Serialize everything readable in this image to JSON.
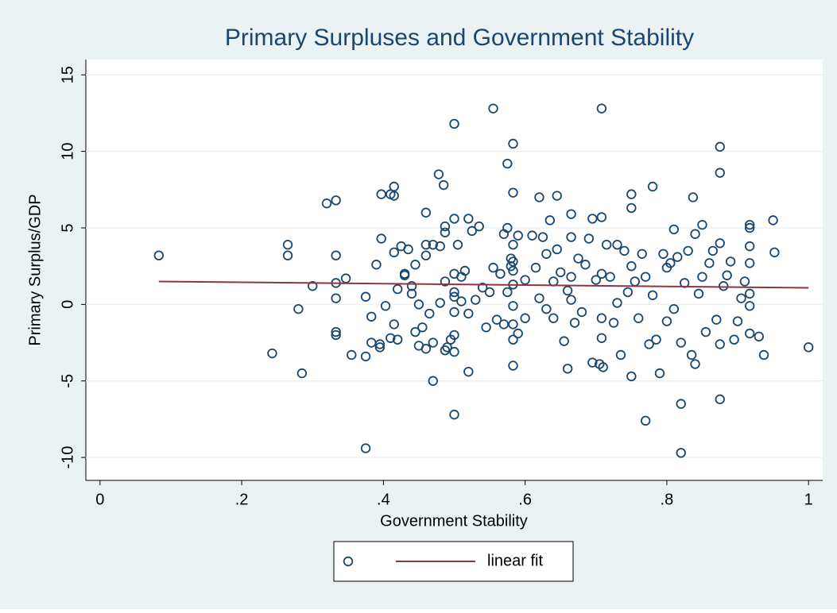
{
  "chart_data": {
    "type": "scatter",
    "title": "Primary Surpluses and Government Stability",
    "x_label": "Government Stability",
    "y_label": "Primary Surplus/GDP",
    "xlim": [
      -0.02,
      1.02
    ],
    "ylim": [
      -11.5,
      16
    ],
    "xticks": [
      0,
      {
        "value": 0.2,
        "label": ".2"
      },
      {
        "value": 0.4,
        "label": ".4"
      },
      {
        "value": 0.6,
        "label": ".6"
      },
      {
        "value": 0.8,
        "label": ".8"
      },
      1
    ],
    "yticks": [
      -10,
      -5,
      0,
      5,
      10,
      15
    ],
    "grid": true,
    "series": [
      {
        "type": "scatter",
        "color": "#1a476f",
        "x": [
          0.083,
          0.243,
          0.265,
          0.265,
          0.28,
          0.285,
          0.3,
          0.32,
          0.333,
          0.333,
          0.333,
          0.333,
          0.333,
          0.333,
          0.347,
          0.355,
          0.375,
          0.375,
          0.375,
          0.383,
          0.383,
          0.39,
          0.395,
          0.395,
          0.397,
          0.397,
          0.403,
          0.41,
          0.41,
          0.415,
          0.415,
          0.415,
          0.415,
          0.42,
          0.42,
          0.425,
          0.43,
          0.43,
          0.435,
          0.44,
          0.44,
          0.445,
          0.445,
          0.45,
          0.45,
          0.455,
          0.46,
          0.46,
          0.46,
          0.46,
          0.465,
          0.47,
          0.47,
          0.47,
          0.478,
          0.48,
          0.48,
          0.485,
          0.487,
          0.487,
          0.487,
          0.487,
          0.49,
          0.495,
          0.5,
          0.5,
          0.5,
          0.5,
          0.5,
          0.5,
          0.5,
          0.5,
          0.5,
          0.505,
          0.51,
          0.51,
          0.515,
          0.52,
          0.52,
          0.52,
          0.525,
          0.53,
          0.535,
          0.54,
          0.545,
          0.55,
          0.555,
          0.555,
          0.56,
          0.565,
          0.57,
          0.57,
          0.575,
          0.575,
          0.575,
          0.58,
          0.58,
          0.583,
          0.583,
          0.583,
          0.583,
          0.583,
          0.583,
          0.583,
          0.583,
          0.583,
          0.583,
          0.59,
          0.59,
          0.6,
          0.6,
          0.61,
          0.615,
          0.62,
          0.62,
          0.625,
          0.63,
          0.63,
          0.635,
          0.64,
          0.64,
          0.645,
          0.645,
          0.65,
          0.655,
          0.66,
          0.66,
          0.665,
          0.665,
          0.665,
          0.665,
          0.67,
          0.675,
          0.68,
          0.685,
          0.69,
          0.695,
          0.695,
          0.7,
          0.705,
          0.708,
          0.708,
          0.708,
          0.708,
          0.708,
          0.71,
          0.715,
          0.72,
          0.725,
          0.73,
          0.73,
          0.735,
          0.74,
          0.745,
          0.75,
          0.75,
          0.75,
          0.75,
          0.755,
          0.76,
          0.765,
          0.77,
          0.77,
          0.775,
          0.78,
          0.78,
          0.785,
          0.79,
          0.795,
          0.8,
          0.8,
          0.805,
          0.81,
          0.81,
          0.815,
          0.82,
          0.82,
          0.82,
          0.825,
          0.83,
          0.835,
          0.837,
          0.84,
          0.84,
          0.845,
          0.85,
          0.85,
          0.855,
          0.86,
          0.865,
          0.87,
          0.875,
          0.875,
          0.875,
          0.875,
          0.875,
          0.88,
          0.885,
          0.89,
          0.895,
          0.9,
          0.905,
          0.91,
          0.917,
          0.917,
          0.917,
          0.917,
          0.917,
          0.917,
          0.917,
          0.93,
          0.937,
          0.95,
          0.952,
          1.0
        ],
        "values": [
          3.2,
          -3.2,
          3.9,
          3.2,
          -0.3,
          -4.5,
          1.2,
          6.6,
          6.8,
          3.2,
          1.4,
          0.4,
          -1.8,
          -2.0,
          1.7,
          -3.3,
          -3.4,
          0.5,
          -9.4,
          -0.8,
          -2.5,
          2.6,
          -2.8,
          -2.6,
          7.2,
          4.3,
          -0.1,
          -2.2,
          7.2,
          7.7,
          7.1,
          3.4,
          -1.3,
          1.0,
          -2.3,
          3.8,
          2.0,
          1.9,
          3.6,
          1.2,
          0.7,
          2.6,
          -1.8,
          0.0,
          -2.7,
          -1.5,
          6.0,
          3.9,
          3.2,
          -2.9,
          -0.6,
          3.9,
          -5.0,
          -2.5,
          8.5,
          3.8,
          0.1,
          7.8,
          5.1,
          4.7,
          1.5,
          -3.0,
          -2.8,
          -2.3,
          11.8,
          5.6,
          2.0,
          0.8,
          0.5,
          -0.5,
          -2.0,
          -3.1,
          -7.2,
          3.9,
          1.8,
          0.2,
          2.2,
          -0.6,
          -4.4,
          5.6,
          4.8,
          0.3,
          5.1,
          1.1,
          -1.5,
          0.8,
          12.8,
          2.4,
          -1.0,
          2.0,
          4.6,
          -1.3,
          9.2,
          5.0,
          0.8,
          3.0,
          2.5,
          10.5,
          7.3,
          3.9,
          2.8,
          2.2,
          1.3,
          -0.1,
          -1.3,
          -2.3,
          -4.0,
          4.5,
          -1.9,
          1.6,
          -0.9,
          4.5,
          2.4,
          7.0,
          0.4,
          4.4,
          -0.3,
          3.3,
          5.5,
          1.5,
          -0.9,
          7.1,
          3.6,
          2.1,
          -2.4,
          0.9,
          -4.2,
          5.9,
          4.4,
          1.8,
          0.3,
          -1.2,
          3.0,
          -0.5,
          2.6,
          4.3,
          -3.8,
          5.6,
          1.6,
          -3.9,
          12.8,
          5.7,
          2.0,
          -0.9,
          -2.2,
          -4.1,
          3.9,
          1.8,
          -1.2,
          3.9,
          0.1,
          -3.3,
          3.5,
          0.8,
          7.2,
          6.3,
          2.5,
          -4.7,
          1.5,
          -0.9,
          3.3,
          -7.6,
          1.8,
          -2.6,
          7.7,
          0.6,
          -2.3,
          -4.5,
          3.3,
          2.4,
          -1.1,
          2.7,
          4.9,
          -0.3,
          3.1,
          -9.7,
          -6.5,
          -2.5,
          1.4,
          3.5,
          -3.3,
          7.0,
          -3.9,
          4.6,
          0.7,
          5.2,
          1.8,
          -1.8,
          2.7,
          3.5,
          -1.0,
          10.3,
          8.6,
          -6.2,
          -2.6,
          4.0,
          1.2,
          1.9,
          2.8,
          -2.3,
          -1.1,
          0.4,
          1.5,
          5.2,
          5.0,
          3.8,
          2.7,
          0.7,
          -1.9,
          -0.1,
          -2.1,
          -3.3,
          5.5,
          3.4,
          -2.8
        ]
      },
      {
        "type": "line",
        "name": "linear fit",
        "color": "#90353b",
        "x": [
          0.083,
          1.0
        ],
        "values": [
          1.5,
          1.08
        ]
      }
    ]
  }
}
